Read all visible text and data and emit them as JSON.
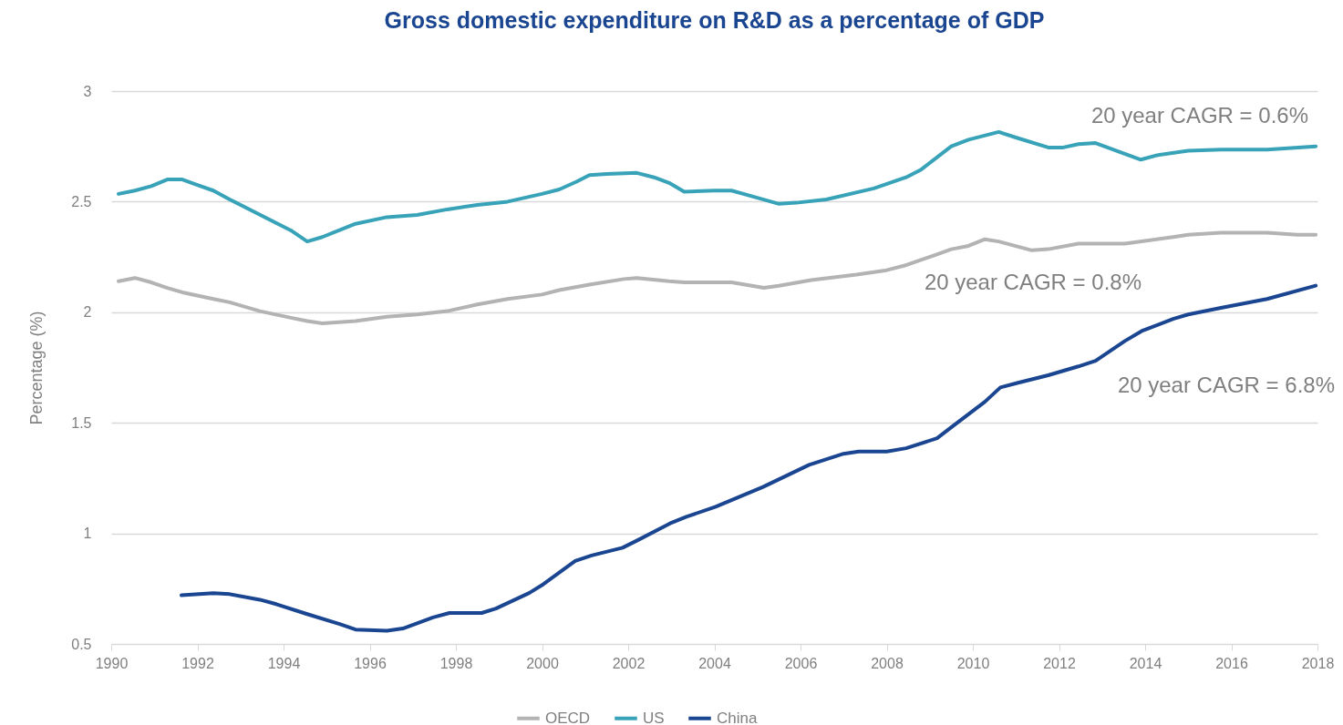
{
  "chart_data": {
    "type": "line",
    "title": "Gross domestic expenditure on R&D as a percentage of GDP",
    "ylabel": "Percentage (%)",
    "xlim": [
      1990,
      2018
    ],
    "xticks": [
      1990,
      1992,
      1994,
      1996,
      1998,
      2000,
      2002,
      2004,
      2006,
      2008,
      2010,
      2012,
      2014,
      2016,
      2018
    ],
    "ylim": [
      0.5,
      3
    ],
    "yticks": [
      0.5,
      1,
      1.5,
      2,
      2.5,
      3
    ],
    "grid": "y",
    "legend": "bottom",
    "annotations": [
      "20 year CAGR = 0.6%",
      "20 year CAGR = 0.8%",
      "20 year CAGR = 6.8%"
    ],
    "series": [
      {
        "name": "OECD",
        "color": "#b3b3b3",
        "x": [
          1990.17,
          1990.55,
          1990.93,
          1991.3,
          1991.65,
          1992.37,
          1992.75,
          1993.45,
          1994.17,
          1994.55,
          1994.9,
          1995.67,
          1996.4,
          1997.1,
          1997.8,
          1998.5,
          1999.2,
          2000.0,
          2000.4,
          2001.1,
          2001.9,
          2002.2,
          2002.95,
          2003.3,
          2004.0,
          2004.4,
          2005.15,
          2005.5,
          2006.25,
          2007.3,
          2008.0,
          2008.4,
          2009.15,
          2009.5,
          2009.9,
          2010.28,
          2010.6,
          2011.37,
          2011.75,
          2012.45,
          2013.53,
          2014.65,
          2015.0,
          2015.76,
          2016.83,
          2017.53,
          2017.96
        ],
        "values": [
          2.14,
          2.155,
          2.135,
          2.11,
          2.09,
          2.06,
          2.045,
          2.005,
          1.975,
          1.96,
          1.95,
          1.96,
          1.98,
          1.99,
          2.005,
          2.035,
          2.06,
          2.08,
          2.1,
          2.125,
          2.15,
          2.155,
          2.14,
          2.135,
          2.135,
          2.135,
          2.11,
          2.12,
          2.145,
          2.17,
          2.19,
          2.21,
          2.26,
          2.285,
          2.3,
          2.33,
          2.32,
          2.28,
          2.285,
          2.31,
          2.31,
          2.34,
          2.35,
          2.36,
          2.36,
          2.35,
          2.35
        ]
      },
      {
        "name": "US",
        "color": "#38a3b8",
        "x": [
          1990.17,
          1990.55,
          1990.93,
          1991.3,
          1991.65,
          1992.0,
          1992.37,
          1992.75,
          1994.17,
          1994.55,
          1994.9,
          1995.67,
          1996.4,
          1997.1,
          1997.8,
          1998.5,
          1999.2,
          2000.0,
          2000.4,
          2000.8,
          2001.1,
          2001.5,
          2002.2,
          2002.6,
          2002.95,
          2003.3,
          2004.0,
          2004.4,
          2004.77,
          2005.5,
          2005.9,
          2006.6,
          2007.7,
          2008.45,
          2008.8,
          2009.5,
          2009.9,
          2010.6,
          2011.0,
          2011.75,
          2012.1,
          2012.45,
          2012.85,
          2013.9,
          2014.28,
          2015.0,
          2015.76,
          2016.83,
          2017.96
        ],
        "values": [
          2.535,
          2.55,
          2.57,
          2.6,
          2.6,
          2.575,
          2.55,
          2.51,
          2.37,
          2.32,
          2.34,
          2.4,
          2.43,
          2.44,
          2.465,
          2.485,
          2.5,
          2.535,
          2.555,
          2.59,
          2.62,
          2.625,
          2.63,
          2.61,
          2.585,
          2.545,
          2.55,
          2.55,
          2.53,
          2.49,
          2.495,
          2.51,
          2.56,
          2.61,
          2.645,
          2.75,
          2.78,
          2.815,
          2.79,
          2.745,
          2.745,
          2.76,
          2.765,
          2.69,
          2.71,
          2.73,
          2.735,
          2.735,
          2.75
        ]
      },
      {
        "name": "China",
        "color": "#1a4590",
        "x": [
          1991.63,
          1992.37,
          1992.75,
          1993.45,
          1993.83,
          1994.55,
          1995.3,
          1995.67,
          1996.4,
          1996.77,
          1997.47,
          1997.85,
          1998.6,
          1998.93,
          1999.7,
          2000.03,
          2000.77,
          2001.15,
          2001.87,
          2002.23,
          2002.97,
          2003.35,
          2004.03,
          2005.13,
          2006.2,
          2007.0,
          2007.35,
          2008.0,
          2008.45,
          2009.17,
          2009.5,
          2010.28,
          2010.64,
          2011.03,
          2011.75,
          2012.45,
          2012.85,
          2013.53,
          2013.92,
          2014.65,
          2015.0,
          2015.76,
          2016.83,
          2017.96
        ],
        "values": [
          0.72,
          0.73,
          0.725,
          0.7,
          0.68,
          0.635,
          0.59,
          0.565,
          0.56,
          0.57,
          0.62,
          0.64,
          0.64,
          0.66,
          0.73,
          0.77,
          0.875,
          0.9,
          0.935,
          0.97,
          1.045,
          1.075,
          1.12,
          1.21,
          1.31,
          1.36,
          1.37,
          1.37,
          1.385,
          1.43,
          1.48,
          1.595,
          1.66,
          1.68,
          1.715,
          1.755,
          1.78,
          1.87,
          1.915,
          1.97,
          1.99,
          2.02,
          2.06,
          2.12
        ]
      }
    ]
  }
}
